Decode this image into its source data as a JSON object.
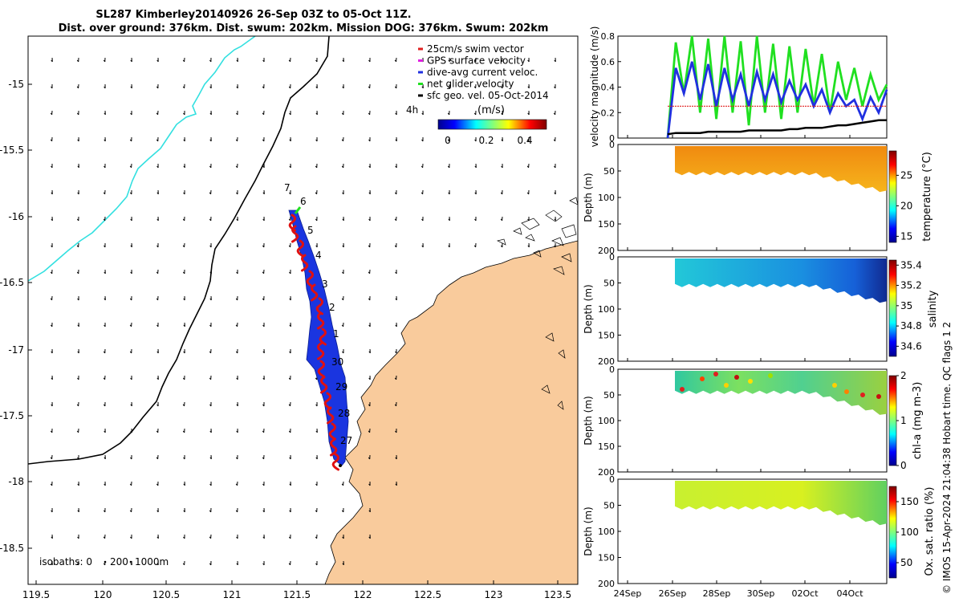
{
  "title": {
    "line1": "SL287 Kimberley20140926 26-Sep 03Z to 05-Oct 11Z.",
    "line2": "Dist. over ground: 376km. Dist. swum: 202km. Mission DOG: 376km. Swum: 202km"
  },
  "map": {
    "x_ticks": [
      "119.5",
      "120",
      "120.5",
      "121",
      "121.5",
      "122",
      "122.5",
      "123",
      "123.5"
    ],
    "y_ticks": [
      "-15",
      "-15.5",
      "-16",
      "-16.5",
      "-17",
      "-17.5",
      "-18",
      "-18.5"
    ],
    "isobaths_label": "isobaths: 0",
    "isobath_200": "200",
    "isobath_1000": "1000m",
    "legend": [
      {
        "label": "25cm/s swim vector",
        "color": "#e02020"
      },
      {
        "label": "GPS surface velocity",
        "color": "#e020e0"
      },
      {
        "label": "dive-avg current veloc.",
        "color": "#2030e0"
      },
      {
        "label": "net glider velocity",
        "color": "#20e020"
      },
      {
        "label": "sfc geo. vel. 05-Oct-2014",
        "color": "#000000"
      }
    ],
    "scale_label": "4h",
    "colorbar_title": "(m/s)",
    "colorbar_ticks": [
      "0",
      "0.2",
      "0.4"
    ],
    "day_labels": [
      "7",
      "6",
      "5",
      "4",
      "3",
      "2",
      "1",
      "30",
      "29",
      "28",
      "27"
    ],
    "land_color": "#f9cb9c",
    "track_color": "#1a35e0"
  },
  "chart_data": [
    {
      "type": "line",
      "title": "",
      "ylabel": "velocity magnitude (m/s)",
      "ylim": [
        0,
        0.8
      ],
      "y_ticks": [
        "0",
        "0.2",
        "0.4",
        "0.6",
        "0.8"
      ],
      "x_range": [
        "24-Sep",
        "05-Oct"
      ],
      "series": [
        {
          "color": "#20e020",
          "note": "net glider velocity",
          "values": [
            0.0,
            0.75,
            0.35,
            0.8,
            0.2,
            0.78,
            0.15,
            0.8,
            0.2,
            0.76,
            0.1,
            0.8,
            0.2,
            0.74,
            0.15,
            0.72,
            0.2,
            0.7,
            0.25,
            0.66,
            0.2,
            0.6,
            0.3,
            0.55,
            0.25,
            0.5,
            0.3,
            0.42
          ]
        },
        {
          "color": "#2030e0",
          "note": "dive-avg current veloc.",
          "values": [
            0.0,
            0.55,
            0.35,
            0.6,
            0.3,
            0.58,
            0.25,
            0.55,
            0.3,
            0.5,
            0.25,
            0.52,
            0.3,
            0.5,
            0.28,
            0.45,
            0.3,
            0.42,
            0.25,
            0.38,
            0.2,
            0.35,
            0.25,
            0.3,
            0.15,
            0.32,
            0.2,
            0.38
          ]
        },
        {
          "color": "#e02020",
          "note": "25cm/s swim vector",
          "values": [
            0.25,
            0.25,
            0.25,
            0.25,
            0.25,
            0.25,
            0.25,
            0.25,
            0.25,
            0.25,
            0.25,
            0.25,
            0.25,
            0.25,
            0.25,
            0.25,
            0.25,
            0.25,
            0.25,
            0.25,
            0.25,
            0.25,
            0.25,
            0.25,
            0.25,
            0.25,
            0.25,
            0.25
          ]
        },
        {
          "color": "#000000",
          "note": "sfc geo. vel.",
          "values": [
            0.03,
            0.04,
            0.04,
            0.04,
            0.04,
            0.05,
            0.05,
            0.05,
            0.05,
            0.05,
            0.06,
            0.06,
            0.06,
            0.06,
            0.06,
            0.07,
            0.07,
            0.08,
            0.08,
            0.08,
            0.09,
            0.1,
            0.1,
            0.11,
            0.12,
            0.13,
            0.14,
            0.14
          ]
        }
      ]
    },
    {
      "type": "heatmap",
      "ylabel": "Depth (m)",
      "y_ticks": [
        "0",
        "50",
        "100",
        "150",
        "200"
      ],
      "colorbar_label": "temperature (°C)",
      "colorbar_ticks": [
        "15",
        "20",
        "25"
      ],
      "clim": [
        14,
        29
      ]
    },
    {
      "type": "heatmap",
      "ylabel": "Depth (m)",
      "y_ticks": [
        "0",
        "50",
        "100",
        "150",
        "200"
      ],
      "colorbar_label": "salinity",
      "colorbar_ticks": [
        "34.6",
        "34.8",
        "35",
        "35.2",
        "35.4"
      ],
      "clim": [
        34.5,
        35.45
      ]
    },
    {
      "type": "heatmap",
      "ylabel": "Depth (m)",
      "y_ticks": [
        "0",
        "50",
        "100",
        "150",
        "200"
      ],
      "colorbar_label": "chl-a (mg m-3)",
      "colorbar_ticks": [
        "0",
        "1",
        "2"
      ],
      "clim": [
        0,
        2
      ]
    },
    {
      "type": "heatmap",
      "ylabel": "Depth (m)",
      "y_ticks": [
        "0",
        "50",
        "100",
        "150",
        "200"
      ],
      "colorbar_label": "Ox. sat. ratio (%)",
      "colorbar_ticks": [
        "50",
        "100",
        "150"
      ],
      "clim": [
        25,
        175
      ]
    }
  ],
  "time_axis": {
    "ticks": [
      "24Sep",
      "26Sep",
      "28Sep",
      "30Sep",
      "02Oct",
      "04Oct"
    ]
  },
  "side_text": "© IMOS 15-Apr-2024 21:04:38 Hobart time. QC flags 1  2"
}
